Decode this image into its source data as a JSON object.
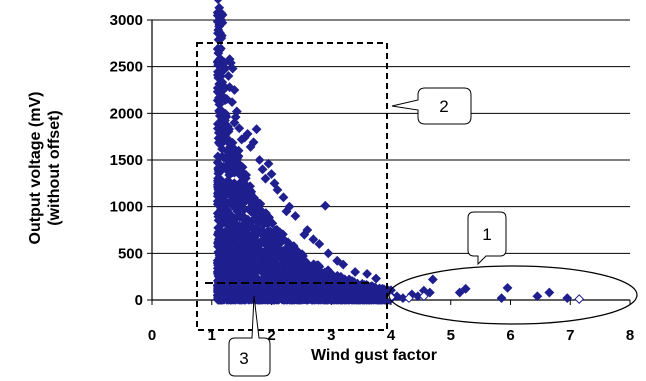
{
  "chart_data": {
    "type": "scatter",
    "title": "",
    "xlabel": "Wind gust factor",
    "ylabel_lines": [
      "Output voltage (mV)",
      "(without offset)"
    ],
    "xlim": [
      0,
      8
    ],
    "ylim": [
      0,
      3000
    ],
    "x_ticks": [
      "0",
      "1",
      "2",
      "3",
      "4",
      "5",
      "6",
      "7",
      "8"
    ],
    "y_ticks": [
      "0",
      "500",
      "1000",
      "1500",
      "2000",
      "2500",
      "3000"
    ],
    "grid": {
      "horizontal": true,
      "vertical": false
    },
    "legend": "none",
    "marker_color": "#1f1f8f",
    "annotations": [
      {
        "label": "1",
        "shape": "ellipse"
      },
      {
        "label": "2",
        "shape": "dashed-rectangle"
      },
      {
        "label": "3",
        "shape": "dashed-line"
      }
    ],
    "series": [
      {
        "points": [
          [
            1.3,
            2580
          ],
          [
            1.32,
            2540
          ],
          [
            1.35,
            2480
          ],
          [
            1.28,
            2400
          ],
          [
            1.3,
            2280
          ],
          [
            1.38,
            2250
          ],
          [
            1.34,
            2120
          ],
          [
            1.42,
            2020
          ],
          [
            1.4,
            1960
          ],
          [
            1.38,
            1900
          ],
          [
            1.27,
            1860
          ],
          [
            1.46,
            1840
          ],
          [
            1.75,
            1830
          ],
          [
            1.6,
            1780
          ],
          [
            1.55,
            1740
          ],
          [
            1.5,
            1720
          ],
          [
            1.7,
            1690
          ],
          [
            1.65,
            1640
          ],
          [
            1.45,
            1600
          ],
          [
            1.8,
            1500
          ],
          [
            1.95,
            1460
          ],
          [
            1.85,
            1400
          ],
          [
            2.0,
            1350
          ],
          [
            1.9,
            1300
          ],
          [
            2.05,
            1250
          ],
          [
            2.1,
            1180
          ],
          [
            2.2,
            1100
          ],
          [
            2.3,
            1000
          ],
          [
            2.25,
            950
          ],
          [
            2.4,
            900
          ],
          [
            2.9,
            1010
          ],
          [
            2.6,
            750
          ],
          [
            2.55,
            700
          ],
          [
            2.7,
            650
          ],
          [
            2.8,
            600
          ],
          [
            2.95,
            500
          ],
          [
            3.1,
            420
          ],
          [
            3.2,
            380
          ],
          [
            3.4,
            300
          ],
          [
            3.6,
            280
          ],
          [
            3.75,
            230
          ],
          [
            3.5,
            150
          ],
          [
            3.85,
            100
          ],
          [
            3.9,
            60
          ],
          [
            4.0,
            30
          ],
          [
            4.1,
            40
          ],
          [
            4.2,
            20
          ],
          [
            4.35,
            60
          ],
          [
            4.45,
            40
          ],
          [
            4.55,
            100
          ],
          [
            4.65,
            80
          ],
          [
            4.7,
            220
          ],
          [
            5.15,
            80
          ],
          [
            5.25,
            120
          ],
          [
            5.85,
            20
          ],
          [
            5.95,
            130
          ],
          [
            6.45,
            40
          ],
          [
            6.65,
            80
          ],
          [
            6.95,
            20
          ]
        ],
        "dense_region": {
          "x_range": [
            1.1,
            4.0
          ],
          "peak_x": 1.3,
          "peak_y": 1800,
          "decay": 0.75
        },
        "hollow_points": [
          [
            4.0,
            30
          ],
          [
            4.3,
            20
          ],
          [
            4.55,
            40
          ],
          [
            7.15,
            10
          ]
        ]
      }
    ]
  },
  "callouts": {
    "c1": "1",
    "c2": "2",
    "c3": "3"
  }
}
